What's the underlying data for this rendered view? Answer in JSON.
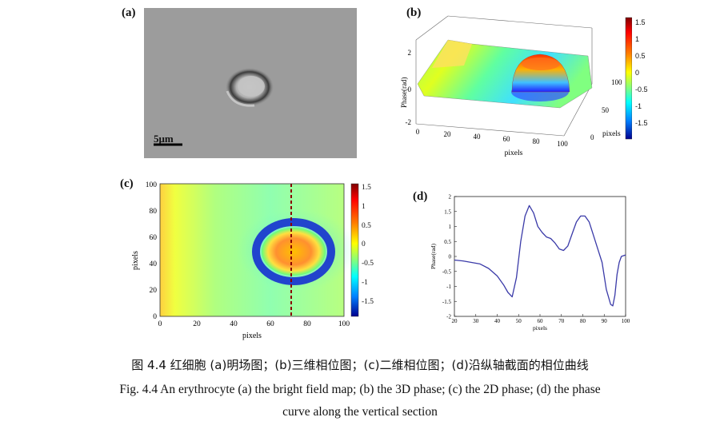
{
  "panels": {
    "a": {
      "label": "(a)",
      "scale_bar": "5μm"
    },
    "b": {
      "label": "(b)",
      "zlabel": "Phase(rad)",
      "xlabel": "pixels",
      "ylabel": "pixels",
      "z_ticks": [
        "2",
        "0",
        "-2"
      ],
      "x_ticks": [
        "0",
        "20",
        "40",
        "60",
        "80",
        "100"
      ],
      "y_ticks": [
        "0",
        "50",
        "100"
      ],
      "colorbar_ticks": [
        "1.5",
        "1",
        "0.5",
        "0",
        "-0.5",
        "-1",
        "-1.5"
      ]
    },
    "c": {
      "label": "(c)",
      "xlabel": "pixels",
      "ylabel": "pixels",
      "x_ticks": [
        "0",
        "20",
        "40",
        "60",
        "80",
        "100"
      ],
      "y_ticks": [
        "100",
        "80",
        "60",
        "40",
        "20",
        "0"
      ],
      "colorbar_ticks": [
        "1.5",
        "1",
        "0.5",
        "0",
        "-0.5",
        "-1",
        "-1.5"
      ]
    },
    "d": {
      "label": "(d)"
    }
  },
  "chart_data": {
    "type": "line",
    "title": "",
    "xlabel": "pixels",
    "ylabel": "Phase(rad)",
    "xlim": [
      20,
      100
    ],
    "ylim": [
      -2,
      2
    ],
    "x_ticks": [
      "20",
      "30",
      "40",
      "50",
      "60",
      "70",
      "80",
      "90",
      "100"
    ],
    "y_ticks": [
      "2",
      "1.5",
      "1",
      "0.5",
      "0",
      "-0.5",
      "-1",
      "-1.5",
      "-2"
    ],
    "series": [
      {
        "name": "phase",
        "color": "#3a3aa8",
        "x": [
          20,
          24,
          28,
          32,
          36,
          40,
          43,
          45,
          47,
          49,
          51,
          53,
          55,
          57,
          59,
          61,
          63,
          65,
          67,
          69,
          71,
          73,
          75,
          77,
          79,
          81,
          83,
          85,
          87,
          89,
          91,
          93,
          94,
          95,
          96,
          97,
          98,
          100
        ],
        "y": [
          -0.12,
          -0.15,
          -0.2,
          -0.25,
          -0.4,
          -0.65,
          -0.95,
          -1.2,
          -1.35,
          -0.7,
          0.5,
          1.35,
          1.7,
          1.45,
          1.0,
          0.8,
          0.65,
          0.6,
          0.45,
          0.25,
          0.2,
          0.35,
          0.75,
          1.15,
          1.35,
          1.35,
          1.15,
          0.7,
          0.25,
          -0.2,
          -1.1,
          -1.6,
          -1.65,
          -1.3,
          -0.6,
          -0.2,
          0.0,
          0.05
        ]
      }
    ]
  },
  "caption": {
    "chinese": "图 4.4 红细胞 (a)明场图；(b)三维相位图；(c)二维相位图；(d)沿纵轴截面的相位曲线",
    "english_line1": "Fig. 4.4 An erythrocyte (a) the bright field map; (b) the 3D phase; (c) the 2D phase; (d) the phase",
    "english_line2": "curve along the vertical section"
  },
  "colors": {
    "colormap": [
      "#00008f",
      "#0000ff",
      "#0080ff",
      "#00ffff",
      "#80ff80",
      "#ffff00",
      "#ff8000",
      "#ff0000",
      "#800000"
    ]
  }
}
